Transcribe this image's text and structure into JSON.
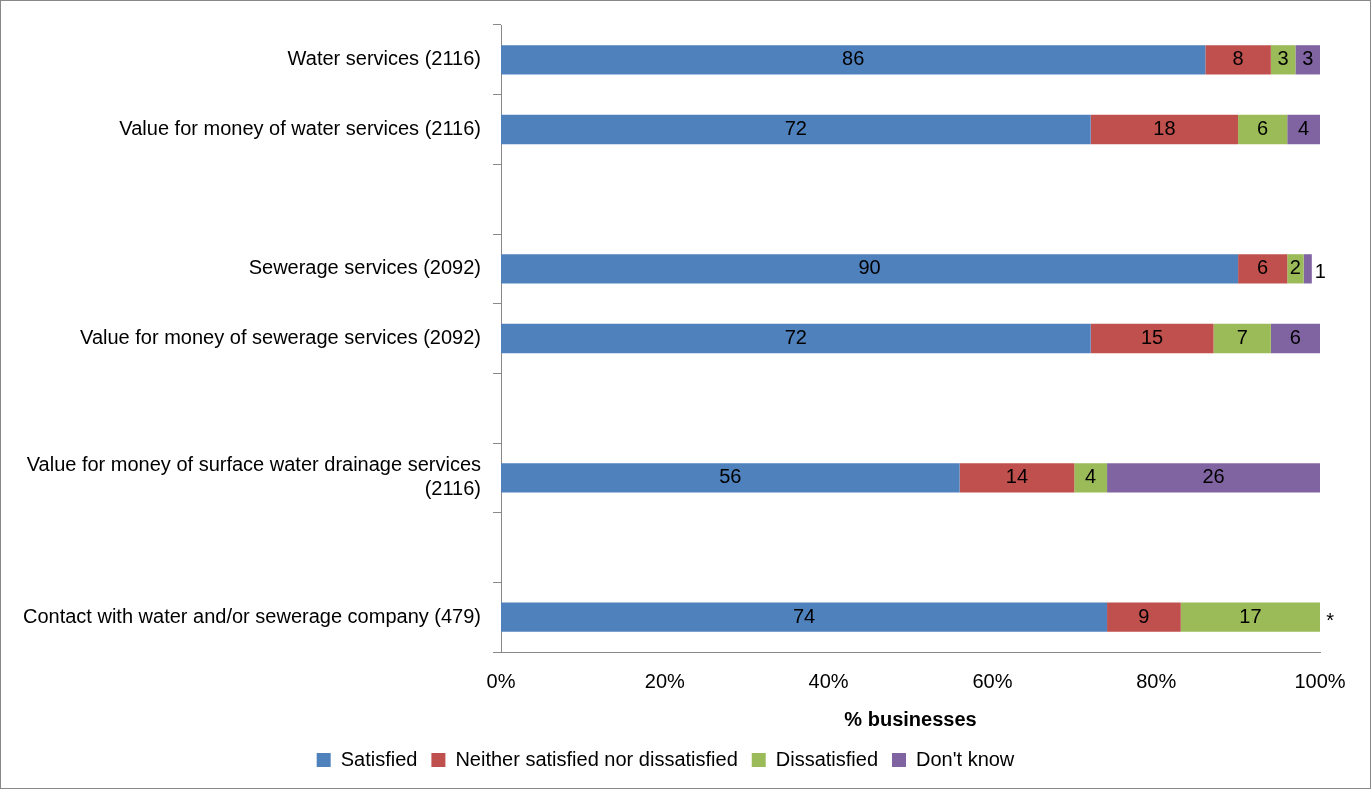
{
  "chart_data": {
    "type": "bar",
    "orientation": "horizontal",
    "stacked": true,
    "categories": [
      "Water services (2116)",
      "Value for money of water services (2116)",
      null,
      "Sewerage services (2092)",
      "Value for money of sewerage services (2092)",
      null,
      "Value for money of surface water drainage services (2116)",
      null,
      "Contact with water and/or sewerage company (479)"
    ],
    "series": [
      {
        "name": "Satisfied",
        "color": "#4f81bd",
        "values": [
          86,
          72,
          null,
          90,
          72,
          null,
          56,
          null,
          74
        ],
        "value_labels": [
          "86",
          "72",
          null,
          "90",
          "72",
          null,
          "56",
          null,
          "74"
        ]
      },
      {
        "name": "Neither satisfied nor dissatisfied",
        "color": "#c0504d",
        "values": [
          8,
          18,
          null,
          6,
          15,
          null,
          14,
          null,
          9
        ],
        "value_labels": [
          "8",
          "18",
          null,
          "6",
          "15",
          null,
          "14",
          null,
          "9"
        ]
      },
      {
        "name": "Dissatisfied",
        "color": "#9bbb59",
        "values": [
          3,
          6,
          null,
          2,
          7,
          null,
          4,
          null,
          17
        ],
        "value_labels": [
          "3",
          "6",
          null,
          "2",
          "7",
          null,
          "4",
          null,
          "17"
        ]
      },
      {
        "name": "Don't know",
        "color": "#8064a2",
        "values": [
          3,
          4,
          null,
          1,
          6,
          null,
          26,
          null,
          0.4
        ],
        "value_labels": [
          "3",
          "4",
          null,
          "1",
          "6",
          null,
          "26",
          null,
          "*"
        ]
      }
    ],
    "xlim": [
      0,
      100
    ],
    "xticks": [
      {
        "value": 0,
        "label": "0%"
      },
      {
        "value": 20,
        "label": "20%"
      },
      {
        "value": 40,
        "label": "40%"
      },
      {
        "value": 60,
        "label": "60%"
      },
      {
        "value": 80,
        "label": "80%"
      },
      {
        "value": 100,
        "label": "100%"
      }
    ],
    "xlabel": "% businesses",
    "legend": "bottom",
    "grid": false
  }
}
